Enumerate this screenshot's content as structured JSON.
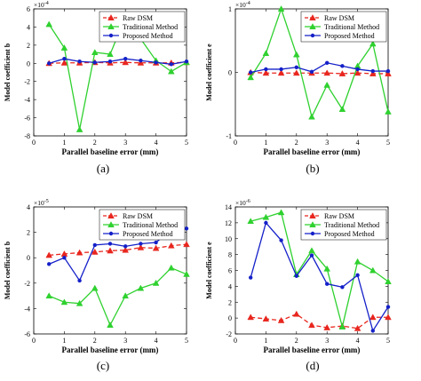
{
  "figure": {
    "colors": {
      "raw": "#e8261e",
      "traditional": "#2fd12f",
      "proposed": "#1420c8"
    },
    "legend_labels": [
      "Raw DSM",
      "Traditional Method",
      "Proposed Method"
    ]
  },
  "chart_data": [
    {
      "type": "line",
      "panel_label": "(a)",
      "xlabel": "Parallel baseline error (mm)",
      "ylabel": "Model coefficient b",
      "exponent_label": "×10",
      "exponent_power": "-4",
      "xlim": [
        0,
        5
      ],
      "ylim": [
        -8,
        6
      ],
      "xticks": [
        "0",
        "1",
        "2",
        "3",
        "4",
        "5"
      ],
      "yticks": [
        "-8",
        "-6",
        "-4",
        "-2",
        "0",
        "2",
        "4",
        "6"
      ],
      "xtick_values": [
        0,
        1,
        2,
        3,
        4,
        5
      ],
      "ytick_values": [
        -8,
        -6,
        -4,
        -2,
        0,
        2,
        4,
        6
      ],
      "legend_position": "top-right",
      "x": [
        0.5,
        1,
        1.5,
        2,
        2.5,
        3,
        3.5,
        4,
        4.5,
        5
      ],
      "series": [
        {
          "name": "Raw DSM",
          "style": "dashed",
          "marker": "triangle",
          "color_key": "raw",
          "values": [
            0,
            0.05,
            0.05,
            0.1,
            0.05,
            0.1,
            0.05,
            0.05,
            0.05,
            0.1
          ]
        },
        {
          "name": "Traditional Method",
          "style": "solid",
          "marker": "triangle",
          "color_key": "traditional",
          "values": [
            4.3,
            1.7,
            -7.3,
            1.2,
            1.0,
            5.1,
            2.7,
            0.3,
            -0.9,
            0.1
          ]
        },
        {
          "name": "Proposed Method",
          "style": "solid",
          "marker": "dot",
          "color_key": "proposed",
          "values": [
            0,
            0.5,
            0.2,
            0.1,
            0.2,
            0.5,
            0.3,
            0.1,
            -0.1,
            0.2
          ]
        }
      ]
    },
    {
      "type": "line",
      "panel_label": "(b)",
      "xlabel": "Parallel baseline error (mm)",
      "ylabel": "Model coefficient e",
      "exponent_label": "×10",
      "exponent_power": "-4",
      "xlim": [
        0,
        5
      ],
      "ylim": [
        -1,
        1
      ],
      "xticks": [
        "0",
        "1",
        "2",
        "3",
        "4",
        "5"
      ],
      "yticks": [
        "-1",
        "0",
        "1"
      ],
      "xtick_values": [
        0,
        1,
        2,
        3,
        4,
        5
      ],
      "ytick_values": [
        -1,
        0,
        1
      ],
      "legend_position": "top-right",
      "x": [
        0.5,
        1,
        1.5,
        2,
        2.5,
        3,
        3.5,
        4,
        4.5,
        5
      ],
      "series": [
        {
          "name": "Raw DSM",
          "style": "dashed",
          "marker": "triangle",
          "color_key": "raw",
          "values": [
            0,
            -0.01,
            -0.01,
            -0.01,
            -0.01,
            -0.01,
            -0.02,
            -0.01,
            -0.02,
            -0.02
          ]
        },
        {
          "name": "Traditional Method",
          "style": "solid",
          "marker": "triangle",
          "color_key": "traditional",
          "values": [
            -0.08,
            0.3,
            1.0,
            0.28,
            -0.7,
            -0.2,
            -0.58,
            0.1,
            0.45,
            -0.62
          ]
        },
        {
          "name": "Proposed Method",
          "style": "solid",
          "marker": "dot",
          "color_key": "proposed",
          "values": [
            0,
            0.05,
            0.05,
            0.08,
            0.01,
            0.15,
            0.1,
            0.05,
            0.02,
            0.02
          ]
        }
      ]
    },
    {
      "type": "line",
      "panel_label": "(c)",
      "xlabel": "Parallel baseline error (mm)",
      "ylabel": "Model coefficient b",
      "exponent_label": "×10",
      "exponent_power": "-5",
      "xlim": [
        0,
        5
      ],
      "ylim": [
        -6,
        4
      ],
      "xticks": [
        "0",
        "1",
        "2",
        "3",
        "4",
        "5"
      ],
      "yticks": [
        "-6",
        "-4",
        "-2",
        "0",
        "2",
        "4"
      ],
      "xtick_values": [
        0,
        1,
        2,
        3,
        4,
        5
      ],
      "ytick_values": [
        -6,
        -4,
        -2,
        0,
        2,
        4
      ],
      "legend_position": "top-right",
      "x": [
        0.5,
        1,
        1.5,
        2,
        2.5,
        3,
        3.5,
        4,
        4.5,
        5
      ],
      "series": [
        {
          "name": "Raw DSM",
          "style": "dashed",
          "marker": "triangle",
          "color_key": "raw",
          "values": [
            0.2,
            0.3,
            0.4,
            0.45,
            0.55,
            0.6,
            0.8,
            0.75,
            0.95,
            1.05
          ]
        },
        {
          "name": "Traditional Method",
          "style": "solid",
          "marker": "triangle",
          "color_key": "traditional",
          "values": [
            -3.0,
            -3.5,
            -3.6,
            -2.4,
            -5.3,
            -3.0,
            -2.4,
            -2.0,
            -0.8,
            -1.3
          ]
        },
        {
          "name": "Proposed Method",
          "style": "solid",
          "marker": "dot",
          "color_key": "proposed",
          "values": [
            -0.5,
            0.0,
            -1.8,
            1.0,
            1.1,
            0.9,
            1.1,
            1.2,
            2.2,
            2.3
          ]
        }
      ]
    },
    {
      "type": "line",
      "panel_label": "(d)",
      "xlabel": "Parallel baseline error (mm)",
      "ylabel": "Model coefficient e",
      "exponent_label": "×10",
      "exponent_power": "-6",
      "xlim": [
        0,
        5
      ],
      "ylim": [
        -2,
        14
      ],
      "xticks": [
        "0",
        "1",
        "2",
        "3",
        "4",
        "5"
      ],
      "yticks": [
        "-2",
        "0",
        "2",
        "4",
        "6",
        "8",
        "10",
        "12",
        "14"
      ],
      "xtick_values": [
        0,
        1,
        2,
        3,
        4,
        5
      ],
      "ytick_values": [
        -2,
        0,
        2,
        4,
        6,
        8,
        10,
        12,
        14
      ],
      "legend_position": "top-right",
      "x": [
        0.5,
        1,
        1.5,
        2,
        2.5,
        3,
        3.5,
        4,
        4.5,
        5
      ],
      "series": [
        {
          "name": "Raw DSM",
          "style": "dashed",
          "marker": "triangle",
          "color_key": "raw",
          "values": [
            0.1,
            -0.1,
            -0.3,
            0.5,
            -0.9,
            -1.2,
            -1.0,
            -1.3,
            0.1,
            0.1
          ]
        },
        {
          "name": "Traditional Method",
          "style": "solid",
          "marker": "triangle",
          "color_key": "traditional",
          "values": [
            12.2,
            12.7,
            13.3,
            5.5,
            8.5,
            6.2,
            -1.1,
            7.1,
            6.0,
            4.6
          ]
        },
        {
          "name": "Proposed Method",
          "style": "solid",
          "marker": "dot",
          "color_key": "proposed",
          "values": [
            5.1,
            12.0,
            9.8,
            5.3,
            7.9,
            4.3,
            3.9,
            5.4,
            -1.6,
            1.4
          ]
        }
      ]
    }
  ]
}
